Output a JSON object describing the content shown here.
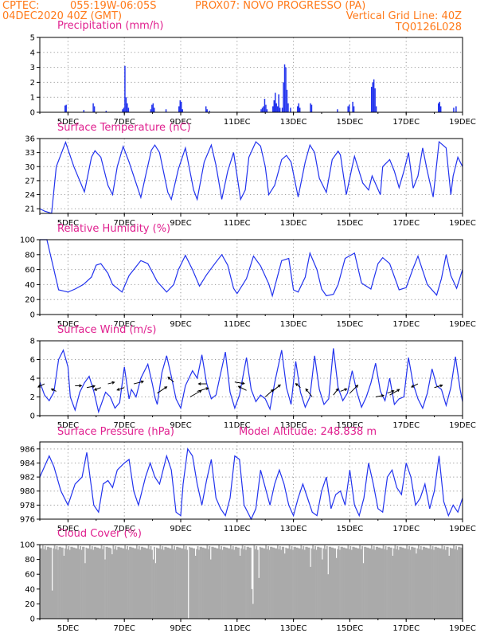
{
  "header": {
    "line1_left": "CPTEC:",
    "line1_coords": "055:19W-06:05S",
    "line1_station": "PROX07: NOVO PROGRESSO (PA)",
    "line2_date": "04DEC2020 40Z (GMT)",
    "line2_grid": "Vertical Grid Line: 40Z",
    "line3_code": "TQ0126L028"
  },
  "x_axis": {
    "start_hour": 0,
    "end_hour": 360,
    "tick_hours": [
      24,
      72,
      120,
      168,
      216,
      264,
      312,
      360
    ],
    "tick_labels": [
      "5DEC",
      "7DEC",
      "9DEC",
      "11DEC",
      "13DEC",
      "15DEC",
      "17DEC",
      "19DEC"
    ],
    "grid_hours": [
      24,
      72,
      120,
      168,
      216,
      264,
      312
    ]
  },
  "colors": {
    "series": "#2233ee",
    "cloud": "#aaaaaa",
    "title": "#e0208f",
    "header": "#ff7a1a"
  },
  "chart_data": [
    {
      "type": "bar",
      "title": "Precipitation (mm/h)",
      "ylim": [
        0,
        5
      ],
      "yticks": [
        0,
        1,
        2,
        3,
        4,
        5
      ],
      "grid": true,
      "events": [
        [
          21,
          0.45
        ],
        [
          22,
          0.5
        ],
        [
          37,
          0.15
        ],
        [
          45,
          0.6
        ],
        [
          46,
          0.4
        ],
        [
          56,
          0.1
        ],
        [
          70,
          0.2
        ],
        [
          71,
          0.3
        ],
        [
          72,
          3.1
        ],
        [
          73,
          1.0
        ],
        [
          74,
          0.6
        ],
        [
          75,
          0.3
        ],
        [
          94,
          0.2
        ],
        [
          95,
          0.5
        ],
        [
          96,
          0.6
        ],
        [
          97,
          0.3
        ],
        [
          107,
          0.2
        ],
        [
          118,
          0.4
        ],
        [
          119,
          0.8
        ],
        [
          120,
          0.7
        ],
        [
          121,
          0.2
        ],
        [
          141,
          0.4
        ],
        [
          142,
          0.2
        ],
        [
          144,
          0.1
        ],
        [
          188,
          0.2
        ],
        [
          189,
          0.3
        ],
        [
          190,
          0.4
        ],
        [
          191,
          0.9
        ],
        [
          192,
          0.5
        ],
        [
          193,
          0.2
        ],
        [
          198,
          0.4
        ],
        [
          199,
          0.8
        ],
        [
          200,
          1.3
        ],
        [
          201,
          0.6
        ],
        [
          202,
          0.4
        ],
        [
          203,
          1.2
        ],
        [
          204,
          0.3
        ],
        [
          206,
          0.3
        ],
        [
          207,
          2.0
        ],
        [
          208,
          3.2
        ],
        [
          209,
          3.0
        ],
        [
          210,
          1.5
        ],
        [
          211,
          0.6
        ],
        [
          213,
          0.3
        ],
        [
          219,
          0.4
        ],
        [
          220,
          0.6
        ],
        [
          221,
          0.3
        ],
        [
          230,
          0.6
        ],
        [
          231,
          0.5
        ],
        [
          253,
          0.2
        ],
        [
          262,
          0.4
        ],
        [
          263,
          0.5
        ],
        [
          266,
          0.7
        ],
        [
          267,
          0.4
        ],
        [
          282,
          1.7
        ],
        [
          283,
          2.0
        ],
        [
          284,
          2.2
        ],
        [
          285,
          1.6
        ],
        [
          286,
          0.4
        ],
        [
          339,
          0.6
        ],
        [
          340,
          0.7
        ],
        [
          341,
          0.4
        ],
        [
          352,
          0.3
        ],
        [
          354,
          0.4
        ]
      ]
    },
    {
      "type": "line",
      "title": "Surface Temperature (nC)",
      "ylim": [
        20,
        36
      ],
      "yticks": [
        21,
        24,
        27,
        30,
        33,
        36
      ],
      "grid": true,
      "x": [
        0,
        4,
        10,
        14,
        22,
        29,
        38,
        40,
        44,
        47,
        52,
        58,
        62,
        66,
        71,
        76,
        86,
        90,
        95,
        98,
        102,
        109,
        112,
        118,
        124,
        131,
        134,
        140,
        146,
        150,
        155,
        160,
        165,
        171,
        175,
        178,
        184,
        188,
        192,
        195,
        200,
        206,
        210,
        214,
        220,
        226,
        230,
        234,
        238,
        244,
        249,
        254,
        256,
        261,
        266,
        268,
        275,
        280,
        283,
        290,
        292,
        298,
        302,
        306,
        310,
        314,
        318,
        322,
        326,
        330,
        335,
        340,
        346,
        350,
        352,
        356,
        360
      ],
      "y": [
        21,
        20.5,
        20,
        30,
        35.2,
        30,
        24.6,
        27,
        32,
        33.4,
        32,
        26,
        24,
        30,
        34.3,
        31,
        23.4,
        28,
        33.5,
        34.6,
        33,
        24.5,
        23,
        29.5,
        34,
        25,
        23,
        31,
        34.6,
        30.3,
        23,
        29,
        33,
        23,
        25,
        32,
        35.3,
        34.4,
        30,
        24,
        26,
        31.5,
        32.4,
        31,
        23.5,
        31,
        34.6,
        33,
        27.5,
        24.5,
        31.5,
        33.3,
        32.5,
        24,
        30,
        32.2,
        26.5,
        25,
        28,
        24,
        30,
        31.5,
        29,
        25.5,
        29,
        33,
        25.4,
        28,
        34,
        29,
        23.5,
        35.3,
        34,
        24,
        28,
        32,
        30
      ]
    },
    {
      "type": "line",
      "title": "Relative Humidity (%)",
      "ylim": [
        0,
        100
      ],
      "yticks": [
        0,
        20,
        40,
        60,
        80,
        100
      ],
      "grid": true,
      "x": [
        0,
        6,
        12,
        16,
        24,
        30,
        37,
        44,
        48,
        52,
        58,
        62,
        70,
        76,
        86,
        92,
        100,
        108,
        114,
        118,
        124,
        130,
        136,
        142,
        150,
        155,
        160,
        165,
        168,
        176,
        182,
        188,
        195,
        198,
        206,
        212,
        216,
        220,
        226,
        230,
        236,
        240,
        244,
        250,
        254,
        260,
        268,
        274,
        282,
        288,
        292,
        298,
        306,
        312,
        318,
        322,
        330,
        338,
        342,
        346,
        350,
        355,
        360
      ],
      "y": [
        100,
        100,
        60,
        33,
        30,
        34,
        40,
        50,
        66,
        68,
        55,
        40,
        30,
        52,
        72,
        68,
        44,
        30,
        40,
        60,
        79,
        60,
        38,
        53,
        70,
        80,
        66,
        35,
        28,
        48,
        78,
        65,
        41,
        25,
        72,
        75,
        33,
        30,
        50,
        82,
        60,
        34,
        25,
        27,
        40,
        75,
        82,
        42,
        34,
        68,
        76,
        68,
        33,
        36,
        62,
        78,
        40,
        26,
        48,
        80,
        52,
        35,
        60
      ]
    },
    {
      "type": "line",
      "title": "Surface Wind (m/s)",
      "ylim": [
        0,
        8
      ],
      "yticks": [
        0,
        2,
        4,
        6,
        8
      ],
      "grid": true,
      "x": [
        0,
        4,
        8,
        12,
        16,
        20,
        24,
        26,
        30,
        34,
        38,
        42,
        46,
        50,
        56,
        60,
        64,
        68,
        72,
        76,
        78,
        82,
        86,
        92,
        96,
        98,
        100,
        104,
        108,
        112,
        116,
        120,
        124,
        130,
        134,
        138,
        142,
        146,
        150,
        154,
        158,
        162,
        166,
        170,
        176,
        180,
        184,
        188,
        192,
        196,
        200,
        206,
        210,
        214,
        218,
        222,
        226,
        230,
        234,
        238,
        242,
        246,
        250,
        254,
        258,
        262,
        266,
        270,
        274,
        278,
        282,
        286,
        290,
        294,
        298,
        302,
        306,
        310,
        314,
        318,
        322,
        326,
        330,
        334,
        338,
        342,
        346,
        350,
        354,
        358,
        360
      ],
      "y": [
        3.6,
        2.2,
        1.6,
        2.5,
        6.0,
        7.0,
        5.2,
        2.0,
        0.6,
        2.5,
        3.5,
        4.2,
        2.6,
        0.4,
        2.5,
        2.0,
        0.8,
        1.4,
        5.2,
        1.8,
        2.8,
        2.0,
        4.0,
        5.5,
        3.3,
        2.0,
        1.2,
        4.6,
        6.4,
        4.2,
        1.8,
        0.8,
        3.2,
        4.8,
        4.0,
        6.5,
        3.5,
        1.8,
        2.2,
        4.5,
        6.8,
        2.5,
        0.8,
        2.2,
        6.2,
        2.8,
        1.5,
        2.2,
        1.8,
        0.7,
        3.5,
        7.0,
        3.0,
        1.2,
        5.8,
        2.5,
        0.9,
        2.0,
        6.4,
        2.8,
        1.2,
        1.8,
        7.2,
        3.0,
        1.6,
        2.4,
        4.8,
        2.5,
        0.9,
        2.0,
        3.5,
        5.6,
        2.6,
        1.6,
        4.0,
        1.2,
        1.8,
        2.0,
        6.2,
        3.4,
        1.8,
        0.8,
        2.4,
        5.0,
        3.2,
        2.8,
        1.1,
        3.0,
        6.3,
        2.8,
        1.5
      ]
    },
    {
      "type": "line",
      "title": "Surface Pressure (hPa)",
      "annotation": "Model Altitude: 248.838  m",
      "ylim": [
        976,
        987
      ],
      "yticks": [
        976,
        978,
        980,
        982,
        984,
        986
      ],
      "grid": true,
      "x": [
        0,
        4,
        8,
        12,
        18,
        24,
        30,
        36,
        40,
        46,
        50,
        54,
        58,
        62,
        66,
        72,
        76,
        80,
        84,
        90,
        94,
        98,
        102,
        108,
        112,
        116,
        120,
        122,
        126,
        130,
        134,
        138,
        142,
        146,
        150,
        154,
        158,
        162,
        166,
        170,
        174,
        180,
        184,
        188,
        192,
        196,
        200,
        204,
        208,
        212,
        216,
        220,
        224,
        228,
        232,
        236,
        240,
        244,
        248,
        252,
        256,
        260,
        264,
        268,
        272,
        276,
        280,
        284,
        288,
        292,
        296,
        300,
        304,
        308,
        312,
        316,
        320,
        324,
        328,
        332,
        336,
        340,
        344,
        348,
        352,
        356,
        360
      ],
      "y": [
        982,
        983.5,
        985,
        983.5,
        980,
        978,
        981,
        982,
        985.5,
        978,
        977,
        981,
        981.5,
        980.5,
        983,
        984,
        984.5,
        980,
        978,
        982,
        984,
        982,
        981,
        985,
        983,
        977,
        976.5,
        981,
        986,
        985,
        981,
        978,
        981.5,
        984.5,
        979,
        977.5,
        976.5,
        979,
        985,
        984.5,
        978,
        976,
        977.5,
        983,
        980.5,
        978,
        981,
        983,
        981,
        978,
        976.5,
        979,
        981,
        979,
        977,
        976.5,
        980,
        982,
        977.5,
        979.5,
        980,
        978,
        983,
        978,
        976.5,
        979,
        984,
        981,
        977.5,
        977,
        982,
        983,
        980.5,
        979.5,
        984,
        982,
        978,
        979,
        981,
        977.5,
        980,
        985,
        978.5,
        976.5,
        978,
        977,
        979
      ]
    },
    {
      "type": "bar",
      "title": "Cloud Cover (%)",
      "ylim": [
        0,
        100
      ],
      "yticks": [
        0,
        20,
        40,
        60,
        80,
        100
      ],
      "grid": false,
      "dips": [
        [
          10,
          38
        ],
        [
          20,
          85
        ],
        [
          38,
          75
        ],
        [
          55,
          80
        ],
        [
          61,
          87
        ],
        [
          96,
          80
        ],
        [
          98,
          75
        ],
        [
          126,
          0
        ],
        [
          132,
          85
        ],
        [
          145,
          80
        ],
        [
          170,
          85
        ],
        [
          180,
          40
        ],
        [
          181,
          20
        ],
        [
          186,
          55
        ],
        [
          208,
          88
        ],
        [
          230,
          70
        ],
        [
          240,
          80
        ],
        [
          245,
          60
        ],
        [
          252,
          82
        ],
        [
          275,
          75
        ],
        [
          300,
          85
        ],
        [
          320,
          88
        ],
        [
          348,
          85
        ]
      ]
    }
  ]
}
